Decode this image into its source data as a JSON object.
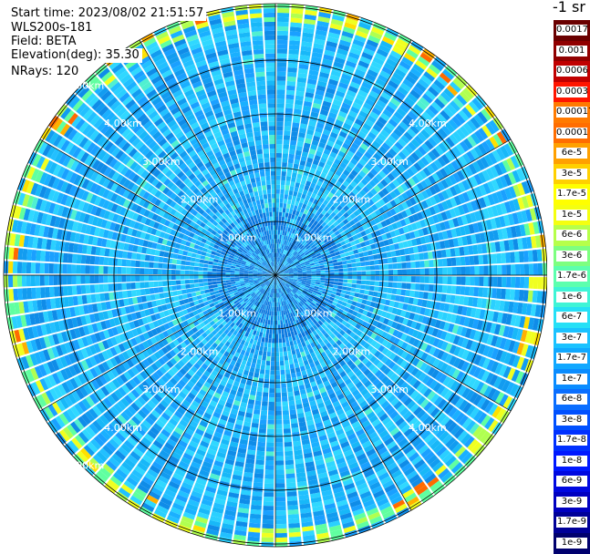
{
  "info": {
    "start_time": "Start time: 2023/08/02 21:51:57",
    "device": "WLS200s-181",
    "field": "Field: BETA",
    "elevation": "Elevation(deg): 35.30",
    "nrays": "NRays: 120"
  },
  "colorbar": {
    "title": "-1 sr",
    "labels": [
      "0.0017",
      "0.001",
      "0.0006",
      "0.0003",
      "0.00017",
      "0.0001",
      "6e-5",
      "3e-5",
      "1.7e-5",
      "1e-5",
      "6e-6",
      "3e-6",
      "1.7e-6",
      "1e-6",
      "6e-7",
      "3e-7",
      "1.7e-7",
      "1e-7",
      "6e-8",
      "3e-8",
      "1.7e-8",
      "1e-8",
      "6e-9",
      "3e-9",
      "1.7e-9",
      "1e-9"
    ],
    "colors": [
      "#6a0000",
      "#900000",
      "#c00000",
      "#ff1500",
      "#ff7a00",
      "#ff6d00",
      "#ffa000",
      "#ffd000",
      "#ffff00",
      "#f4ff10",
      "#b6ff4a",
      "#7dff80",
      "#5cffae",
      "#3ff4d6",
      "#26e0f6",
      "#1ac2ff",
      "#10a8ff",
      "#0a8cff",
      "#0a6eff",
      "#0050ff",
      "#0030ff",
      "#0018ff",
      "#0008e0",
      "#0000c0",
      "#000098",
      "#00006e"
    ]
  },
  "chart_data": {
    "type": "heatmap",
    "projection": "polar-ppi",
    "title": "",
    "n_rays": 120,
    "ring_labels": [
      "1.00km",
      "2.00km",
      "3.00km",
      "4.00km",
      "5.00km"
    ],
    "ring_ranges_km": [
      1,
      2,
      3,
      4,
      5
    ],
    "max_range_km": 5.0,
    "gridlines": "on",
    "dominant_value_range": [
      "1e-7",
      "1e-6"
    ],
    "edge_value_range": [
      "1.7e-5",
      "0.0003"
    ]
  }
}
